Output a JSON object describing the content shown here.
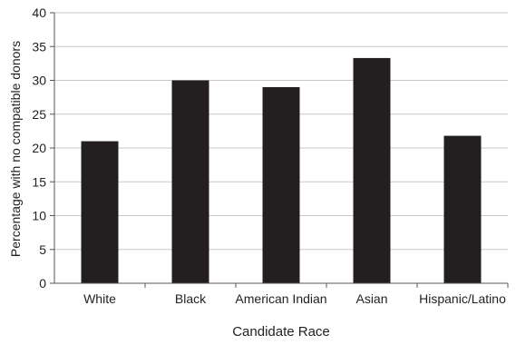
{
  "chart_data": {
    "type": "bar",
    "categories": [
      "White",
      "Black",
      "American Indian",
      "Asian",
      "Hispanic/Latino"
    ],
    "values": [
      21,
      30,
      29,
      33.3,
      21.8
    ],
    "title": "",
    "xlabel": "Candidate Race",
    "ylabel": "Percentage with no compatible donors",
    "ylim": [
      0,
      40
    ],
    "yticks": [
      0,
      5,
      10,
      15,
      20,
      25,
      30,
      35,
      40
    ],
    "grid": true,
    "legend": "none",
    "bar_color": "#231f20",
    "grid_color": "#c8c8c8",
    "axis_color": "#555555"
  }
}
